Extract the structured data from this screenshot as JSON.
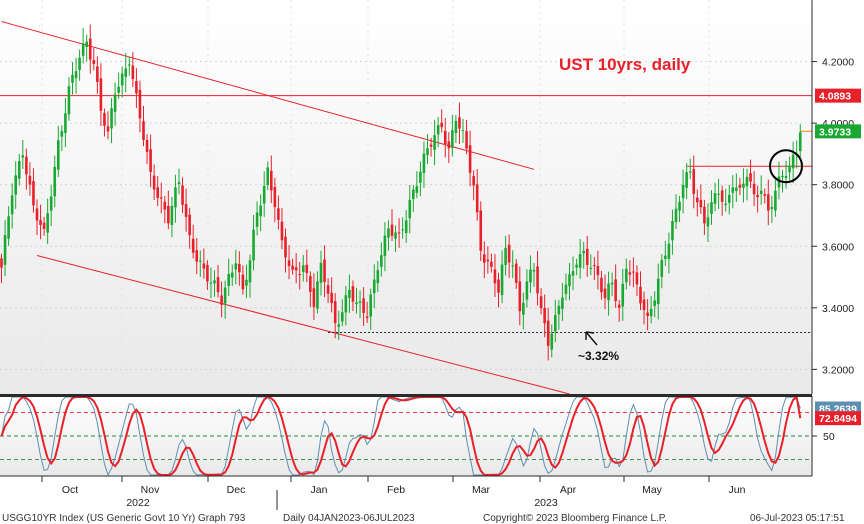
{
  "chart_data": {
    "type": "candlestick",
    "title": "UST 10yrs, daily",
    "annotation": "~3.32%",
    "price_axis": {
      "range": [
        3.12,
        4.4
      ],
      "ticks": [
        "4.2000",
        "4.0000",
        "3.8000",
        "3.6000",
        "3.4000",
        "3.2000"
      ],
      "tick_values": [
        4.2,
        4.0,
        3.8,
        3.6,
        3.4,
        3.2
      ]
    },
    "price_labels": [
      {
        "label": "4.0893",
        "value": 4.0893,
        "color": "#e8202a"
      },
      {
        "label": "3.9733",
        "value": 3.9733,
        "color": "#19a832"
      }
    ],
    "osc_axis": {
      "range": [
        0,
        100
      ],
      "ticks": [
        "50"
      ],
      "tick_values": [
        50
      ]
    },
    "osc_labels": [
      {
        "label": "85.2639",
        "value": 85.2639,
        "color": "#5e8fb0"
      },
      {
        "label": "72.8494",
        "value": 72.8494,
        "color": "#e8202a"
      }
    ],
    "osc_levels": [
      80,
      50,
      20
    ],
    "x_axis": {
      "months": [
        "Oct",
        "Nov",
        "Dec",
        "Jan",
        "Feb",
        "Mar",
        "Apr",
        "May",
        "Jun"
      ],
      "years": [
        "2022",
        "2023"
      ]
    },
    "trendlines": [
      {
        "role": "channel-upper",
        "from": [
          0,
          4.33
        ],
        "to": [
          150,
          3.85
        ]
      },
      {
        "role": "channel-lower",
        "from": [
          10,
          3.57
        ],
        "to": [
          160,
          3.12
        ]
      },
      {
        "role": "resistance",
        "from": [
          -10,
          4.0893
        ],
        "to": [
          230,
          4.0893
        ]
      },
      {
        "role": "support",
        "from": [
          92,
          3.32
        ],
        "to": [
          230,
          3.32
        ]
      },
      {
        "role": "breakout-level",
        "from": [
          193,
          3.86
        ],
        "to": [
          230,
          3.86
        ]
      },
      {
        "role": "last-close",
        "from": [
          225,
          3.9733
        ],
        "to": [
          230,
          3.9733
        ]
      }
    ],
    "close_anchors": [
      [
        0,
        3.52
      ],
      [
        3,
        3.78
      ],
      [
        6,
        3.92
      ],
      [
        9,
        3.72
      ],
      [
        12,
        3.63
      ],
      [
        16,
        3.94
      ],
      [
        19,
        4.1
      ],
      [
        22,
        4.21
      ],
      [
        24,
        4.27
      ],
      [
        26,
        4.2
      ],
      [
        28,
        4.05
      ],
      [
        30,
        3.95
      ],
      [
        32,
        4.1
      ],
      [
        34,
        4.15
      ],
      [
        36,
        4.22
      ],
      [
        38,
        4.08
      ],
      [
        40,
        3.95
      ],
      [
        42,
        3.82
      ],
      [
        45,
        3.75
      ],
      [
        47,
        3.7
      ],
      [
        50,
        3.8
      ],
      [
        53,
        3.62
      ],
      [
        56,
        3.55
      ],
      [
        59,
        3.48
      ],
      [
        62,
        3.42
      ],
      [
        64,
        3.5
      ],
      [
        66,
        3.57
      ],
      [
        68,
        3.45
      ],
      [
        70,
        3.55
      ],
      [
        72,
        3.7
      ],
      [
        75,
        3.85
      ],
      [
        77,
        3.75
      ],
      [
        79,
        3.6
      ],
      [
        82,
        3.5
      ],
      [
        85,
        3.55
      ],
      [
        88,
        3.42
      ],
      [
        90,
        3.52
      ],
      [
        92,
        3.45
      ],
      [
        94,
        3.35
      ],
      [
        96,
        3.4
      ],
      [
        98,
        3.46
      ],
      [
        100,
        3.4
      ],
      [
        103,
        3.38
      ],
      [
        106,
        3.55
      ],
      [
        109,
        3.65
      ],
      [
        112,
        3.62
      ],
      [
        115,
        3.75
      ],
      [
        118,
        3.85
      ],
      [
        121,
        3.93
      ],
      [
        124,
        4.0
      ],
      [
        126,
        3.92
      ],
      [
        128,
        4.02
      ],
      [
        130,
        3.95
      ],
      [
        133,
        3.8
      ],
      [
        135,
        3.6
      ],
      [
        137,
        3.55
      ],
      [
        140,
        3.45
      ],
      [
        142,
        3.58
      ],
      [
        144,
        3.55
      ],
      [
        146,
        3.4
      ],
      [
        148,
        3.48
      ],
      [
        150,
        3.52
      ],
      [
        152,
        3.38
      ],
      [
        154,
        3.3
      ],
      [
        156,
        3.37
      ],
      [
        158,
        3.45
      ],
      [
        160,
        3.48
      ],
      [
        162,
        3.55
      ],
      [
        164,
        3.58
      ],
      [
        166,
        3.55
      ],
      [
        168,
        3.5
      ],
      [
        170,
        3.42
      ],
      [
        172,
        3.48
      ],
      [
        174,
        3.4
      ],
      [
        176,
        3.55
      ],
      [
        178,
        3.5
      ],
      [
        180,
        3.42
      ],
      [
        182,
        3.35
      ],
      [
        184,
        3.45
      ],
      [
        186,
        3.55
      ],
      [
        188,
        3.62
      ],
      [
        190,
        3.7
      ],
      [
        192,
        3.8
      ],
      [
        194,
        3.85
      ],
      [
        196,
        3.75
      ],
      [
        198,
        3.68
      ],
      [
        200,
        3.72
      ],
      [
        202,
        3.78
      ],
      [
        204,
        3.73
      ],
      [
        206,
        3.82
      ],
      [
        208,
        3.77
      ],
      [
        210,
        3.83
      ],
      [
        212,
        3.75
      ],
      [
        214,
        3.8
      ],
      [
        216,
        3.72
      ],
      [
        218,
        3.78
      ],
      [
        220,
        3.82
      ],
      [
        222,
        3.85
      ],
      [
        224,
        3.92
      ],
      [
        225,
        3.97
      ]
    ],
    "footer": {
      "ticker": "USGG10YR Index (US Generic Govt 10 Yr) Graph 793",
      "range": "Daily 04JAN2023-06JUL2023",
      "copyright": "Copyright© 2023 Bloomberg Finance L.P.",
      "timestamp": "06-Jul-2023 05:17:51"
    },
    "colors": {
      "up": "#19a832",
      "down": "#e8202a",
      "osc_fast": "#5e8fb0",
      "osc_slow": "#e8202a",
      "frame": "#2a2a2a"
    }
  }
}
